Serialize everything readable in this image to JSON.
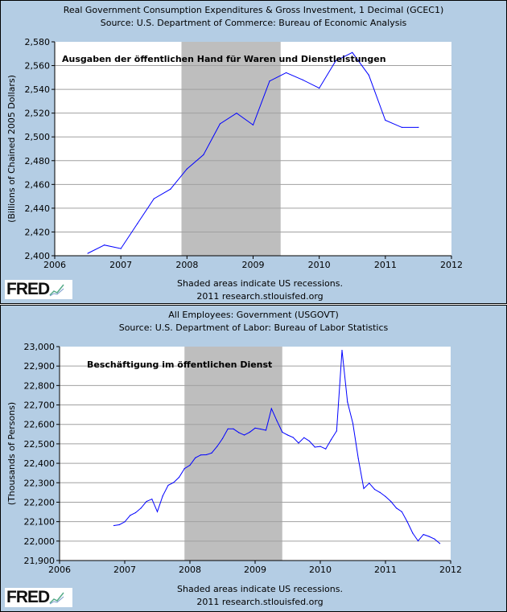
{
  "chart_data": [
    {
      "type": "line",
      "title": "Real Government Consumption Expenditures & Gross Investment, 1 Decimal (GCEC1)",
      "subtitle": "Source: U.S. Department of Commerce: Bureau of Economic Analysis",
      "ylabel": "(Billions of Chained 2005 Dollars)",
      "annotation": "Ausgaben der öffentlichen Hand für Waren und Dienstleistungen",
      "footer": [
        "Shaded areas indicate US recessions.",
        "2011 research.stlouisfed.org"
      ],
      "logo": "FRED",
      "xlim": [
        2006,
        2012
      ],
      "ylim": [
        2400,
        2580
      ],
      "x_ticks": [
        "2006",
        "2007",
        "2008",
        "2009",
        "2010",
        "2011",
        "2012"
      ],
      "y_ticks": [
        "2,400",
        "2,420",
        "2,440",
        "2,460",
        "2,480",
        "2,500",
        "2,520",
        "2,540",
        "2,560",
        "2,580"
      ],
      "recession": [
        "2007-12",
        "2009-06"
      ],
      "grid": true,
      "line_color": "#0000ff",
      "recession_color": "#bebebe",
      "x": [
        "2006-07",
        "2006-10",
        "2007-01",
        "2007-04",
        "2007-07",
        "2007-10",
        "2008-01",
        "2008-04",
        "2008-07",
        "2008-10",
        "2009-01",
        "2009-04",
        "2009-07",
        "2009-10",
        "2010-01",
        "2010-04",
        "2010-07",
        "2010-10",
        "2011-01",
        "2011-04",
        "2011-07"
      ],
      "values": [
        2402,
        2409,
        2406,
        2427,
        2448,
        2456,
        2473,
        2485,
        2511,
        2520,
        2510,
        2547,
        2554,
        2548,
        2541,
        2564,
        2571,
        2552,
        2514,
        2508,
        2508
      ]
    },
    {
      "type": "line",
      "title": "All Employees: Government (USGOVT)",
      "subtitle": "Source: U.S. Department of Labor: Bureau of Labor Statistics",
      "ylabel": "(Thousands of Persons)",
      "annotation": "Beschäftigung im öffentlichen Dienst",
      "footer": [
        "Shaded areas indicate US recessions.",
        "2011 research.stlouisfed.org"
      ],
      "logo": "FRED",
      "xlim": [
        2006,
        2012
      ],
      "ylim": [
        21900,
        23000
      ],
      "x_ticks": [
        "2006",
        "2007",
        "2008",
        "2009",
        "2010",
        "2011",
        "2012"
      ],
      "y_ticks": [
        "21,900",
        "22,000",
        "22,100",
        "22,200",
        "22,300",
        "22,400",
        "22,500",
        "22,600",
        "22,700",
        "22,800",
        "22,900",
        "23,000"
      ],
      "recession": [
        "2007-12",
        "2009-06"
      ],
      "grid": true,
      "line_color": "#0000ff",
      "recession_color": "#bebebe",
      "x": [
        "2006-11",
        "2006-12",
        "2007-01",
        "2007-02",
        "2007-03",
        "2007-04",
        "2007-05",
        "2007-06",
        "2007-07",
        "2007-08",
        "2007-09",
        "2007-10",
        "2007-11",
        "2007-12",
        "2008-01",
        "2008-02",
        "2008-03",
        "2008-04",
        "2008-05",
        "2008-06",
        "2008-07",
        "2008-08",
        "2008-09",
        "2008-10",
        "2008-11",
        "2008-12",
        "2009-01",
        "2009-02",
        "2009-03",
        "2009-04",
        "2009-05",
        "2009-06",
        "2009-07",
        "2009-08",
        "2009-09",
        "2009-10",
        "2009-11",
        "2009-12",
        "2010-01",
        "2010-02",
        "2010-03",
        "2010-04",
        "2010-05",
        "2010-06",
        "2010-07",
        "2010-08",
        "2010-09",
        "2010-10",
        "2010-11",
        "2010-12",
        "2011-01",
        "2011-02",
        "2011-03",
        "2011-04",
        "2011-05",
        "2011-06",
        "2011-07",
        "2011-08",
        "2011-09",
        "2011-10",
        "2011-11"
      ],
      "values": [
        22080,
        22084,
        22099,
        22132,
        22146,
        22170,
        22204,
        22216,
        22151,
        22232,
        22287,
        22301,
        22328,
        22373,
        22390,
        22428,
        22443,
        22444,
        22453,
        22487,
        22527,
        22577,
        22577,
        22558,
        22545,
        22560,
        22581,
        22576,
        22570,
        22681,
        22619,
        22560,
        22545,
        22533,
        22504,
        22532,
        22514,
        22483,
        22487,
        22474,
        22522,
        22566,
        22981,
        22715,
        22605,
        22425,
        22270,
        22298,
        22266,
        22250,
        22229,
        22204,
        22170,
        22151,
        22100,
        22041,
        22001,
        22034,
        22024,
        22011,
        21988
      ]
    }
  ]
}
